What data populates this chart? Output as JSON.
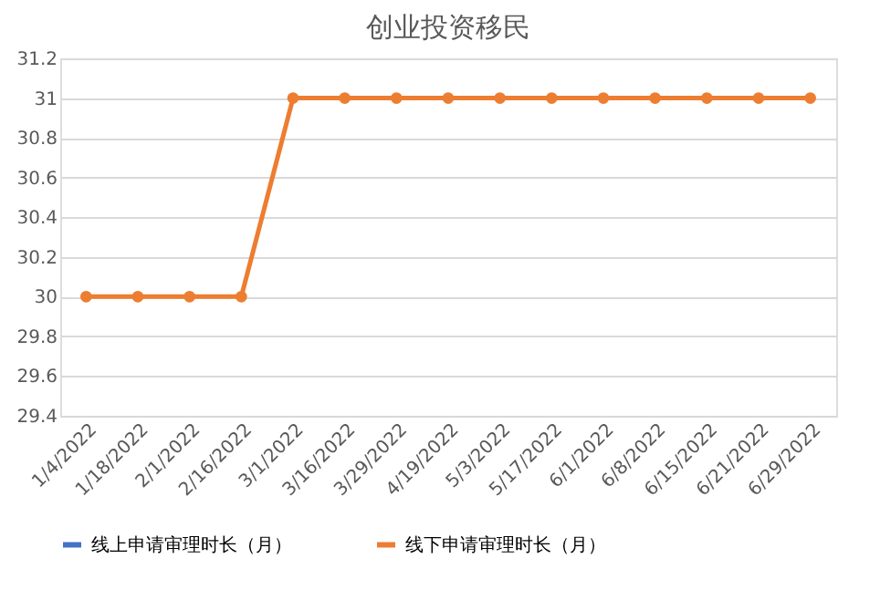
{
  "chart_data": {
    "type": "line",
    "title": "创业投资移民",
    "categories": [
      "1/4/2022",
      "1/18/2022",
      "2/1/2022",
      "2/16/2022",
      "3/1/2022",
      "3/16/2022",
      "3/29/2022",
      "4/19/2022",
      "5/3/2022",
      "5/17/2022",
      "6/1/2022",
      "6/8/2022",
      "6/15/2022",
      "6/21/2022",
      "6/29/2022"
    ],
    "series": [
      {
        "name": "线上申请审理时长（月）",
        "color": "#4472c4",
        "values": [
          null,
          null,
          null,
          null,
          null,
          null,
          null,
          null,
          null,
          null,
          null,
          null,
          null,
          null,
          null
        ]
      },
      {
        "name": "线下申请审理时长（月）",
        "color": "#ed7d31",
        "values": [
          30,
          30,
          30,
          30,
          31,
          31,
          31,
          31,
          31,
          31,
          31,
          31,
          31,
          31,
          31
        ]
      }
    ],
    "ylim": [
      29.4,
      31.2
    ],
    "yticks": [
      29.4,
      29.6,
      29.8,
      30,
      30.2,
      30.4,
      30.6,
      30.8,
      31,
      31.2
    ],
    "grid": "y",
    "legend": "bottom",
    "marker": "circle",
    "line_style": "solid"
  }
}
